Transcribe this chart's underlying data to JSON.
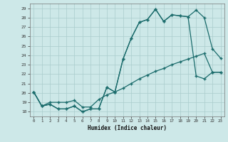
{
  "xlabel": "Humidex (Indice chaleur)",
  "bg_color": "#cde8e8",
  "grid_color": "#b0d4d4",
  "line_color": "#1a6b6b",
  "xlim": [
    -0.5,
    23.5
  ],
  "ylim": [
    17.5,
    29.5
  ],
  "yticks": [
    18,
    19,
    20,
    21,
    22,
    23,
    24,
    25,
    26,
    27,
    28,
    29
  ],
  "xticks": [
    0,
    1,
    2,
    3,
    4,
    5,
    6,
    7,
    8,
    9,
    10,
    11,
    12,
    13,
    14,
    15,
    16,
    17,
    18,
    19,
    20,
    21,
    22,
    23
  ],
  "line1_x": [
    0,
    1,
    2,
    3,
    4,
    5,
    6,
    7,
    8,
    9,
    10,
    11,
    12,
    13,
    14,
    15,
    16,
    17,
    18,
    19,
    20,
    21,
    22,
    23
  ],
  "line1_y": [
    20.1,
    18.6,
    18.8,
    18.3,
    18.3,
    18.6,
    18.0,
    18.3,
    18.3,
    20.6,
    20.1,
    23.6,
    25.8,
    27.5,
    27.8,
    28.9,
    27.6,
    28.3,
    28.2,
    28.1,
    28.8,
    28.0,
    24.7,
    23.7
  ],
  "line2_x": [
    0,
    1,
    2,
    3,
    4,
    5,
    6,
    7,
    8,
    9,
    10,
    11,
    12,
    13,
    14,
    15,
    16,
    17,
    18,
    19,
    20,
    21,
    22,
    23
  ],
  "line2_y": [
    20.1,
    18.6,
    18.8,
    18.3,
    18.3,
    18.6,
    18.0,
    18.3,
    18.3,
    20.6,
    20.1,
    23.6,
    25.8,
    27.5,
    27.8,
    28.9,
    27.6,
    28.3,
    28.2,
    28.1,
    21.8,
    21.5,
    22.2,
    22.2
  ],
  "line3_x": [
    0,
    1,
    2,
    3,
    4,
    5,
    6,
    7,
    8,
    9,
    10,
    11,
    12,
    13,
    14,
    15,
    16,
    17,
    18,
    19,
    20,
    21,
    22,
    23
  ],
  "line3_y": [
    20.1,
    18.6,
    19.0,
    19.0,
    19.0,
    19.2,
    18.5,
    18.5,
    19.3,
    19.8,
    20.1,
    20.5,
    21.0,
    21.5,
    21.9,
    22.3,
    22.6,
    23.0,
    23.3,
    23.6,
    23.9,
    24.2,
    22.2,
    22.2
  ]
}
